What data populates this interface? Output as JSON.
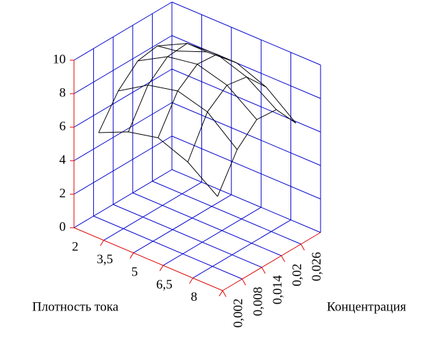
{
  "chart_data": {
    "type": "surface3d",
    "xlabel": "Плотность тока",
    "ylabel": "Концентрация",
    "xcategories": [
      "2",
      "3,5",
      "5",
      "6,5",
      "8"
    ],
    "ycategories": [
      "0,002",
      "0,008",
      "0,014",
      "0,02",
      "0,026"
    ],
    "values": [
      [
        5.7,
        7.5,
        8.6,
        8.8,
        7.8
      ],
      [
        6.5,
        8.6,
        9.6,
        9.7,
        8.5
      ],
      [
        6.9,
        9.0,
        9.9,
        9.8,
        8.6
      ],
      [
        6.2,
        8.5,
        9.4,
        9.2,
        7.9
      ],
      [
        4.9,
        7.0,
        8.1,
        8.0,
        6.5
      ]
    ],
    "color": "#000000",
    "zlim": [
      0,
      10
    ],
    "zticks": [
      0,
      2,
      4,
      6,
      8,
      10
    ],
    "grid": true
  }
}
